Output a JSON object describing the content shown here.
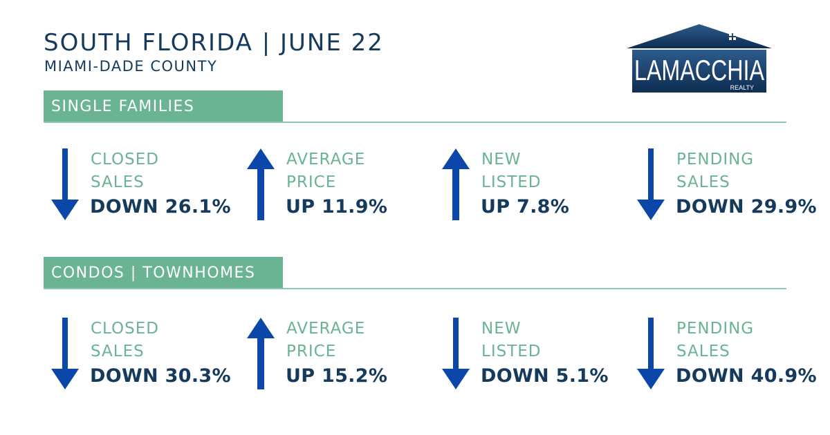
{
  "header": {
    "title": "SOUTH FLORIDA | JUNE 22",
    "subtitle": "MIAMI-DADE COUNTY"
  },
  "logo": {
    "name": "LAMACCHIA",
    "tagline": "REALTY"
  },
  "colors": {
    "navy": "#153a5b",
    "green": "#6ab393",
    "arrow_blue": "#0b47a8"
  },
  "sections": [
    {
      "label": "SINGLE FAMILIES",
      "metrics": [
        {
          "label_line1": "CLOSED",
          "label_line2": "SALES",
          "value": "DOWN 26.1%",
          "direction": "down",
          "icon": "down-arrow-icon"
        },
        {
          "label_line1": "AVERAGE",
          "label_line2": "PRICE",
          "value": "UP 11.9%",
          "direction": "up",
          "icon": "up-arrow-icon"
        },
        {
          "label_line1": "NEW",
          "label_line2": "LISTED",
          "value": "UP 7.8%",
          "direction": "up",
          "icon": "up-arrow-icon"
        },
        {
          "label_line1": "PENDING",
          "label_line2": "SALES",
          "value": "DOWN 29.9%",
          "direction": "down",
          "icon": "down-arrow-icon"
        }
      ]
    },
    {
      "label": "CONDOS | TOWNHOMES",
      "metrics": [
        {
          "label_line1": "CLOSED",
          "label_line2": "SALES",
          "value": "DOWN 30.3%",
          "direction": "down",
          "icon": "down-arrow-icon"
        },
        {
          "label_line1": "AVERAGE",
          "label_line2": "PRICE",
          "value": "UP 15.2%",
          "direction": "up",
          "icon": "up-arrow-icon"
        },
        {
          "label_line1": "NEW",
          "label_line2": "LISTED",
          "value": "DOWN 5.1%",
          "direction": "down",
          "icon": "down-arrow-icon"
        },
        {
          "label_line1": "PENDING",
          "label_line2": "SALES",
          "value": "DOWN 40.9%",
          "direction": "down",
          "icon": "down-arrow-icon"
        }
      ]
    }
  ]
}
